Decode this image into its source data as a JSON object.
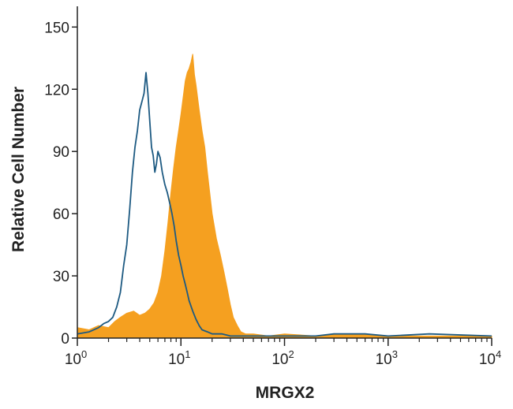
{
  "chart_data": {
    "type": "area",
    "xlabel": "MRGX2",
    "ylabel": "Relative Cell Number",
    "x_scale": "log",
    "xlim": [
      1,
      10000
    ],
    "ylim": [
      0,
      160
    ],
    "x_ticks": [
      {
        "value": 1,
        "base": "10",
        "exp": "0"
      },
      {
        "value": 10,
        "base": "10",
        "exp": "1"
      },
      {
        "value": 100,
        "base": "10",
        "exp": "2"
      },
      {
        "value": 1000,
        "base": "10",
        "exp": "3"
      },
      {
        "value": 10000,
        "base": "10",
        "exp": "4"
      }
    ],
    "y_ticks": [
      {
        "value": 0,
        "label": "0"
      },
      {
        "value": 30,
        "label": "30"
      },
      {
        "value": 60,
        "label": "60"
      },
      {
        "value": 90,
        "label": "90"
      },
      {
        "value": 120,
        "label": "120"
      },
      {
        "value": 150,
        "label": "150"
      }
    ],
    "grid": false,
    "series": [
      {
        "style": "filled",
        "color": "#f5a020",
        "x": [
          1.0,
          1.3,
          1.6,
          2.0,
          2.3,
          2.6,
          3.0,
          3.5,
          4.0,
          4.5,
          5.0,
          5.5,
          6.0,
          6.5,
          7.0,
          7.5,
          8.0,
          8.5,
          9.0,
          9.5,
          10.0,
          10.5,
          11.0,
          11.5,
          12.0,
          12.5,
          13.0,
          13.5,
          14.0,
          14.5,
          15.0,
          16.0,
          17.0,
          18.0,
          19.0,
          20.0,
          22.0,
          24.0,
          26.0,
          28.0,
          30.0,
          32.0,
          35.0,
          38.0,
          42.0,
          50.0,
          70.0,
          100.0,
          200.0,
          400.0,
          1000.0,
          3000.0,
          10000.0
        ],
        "y": [
          5,
          4,
          6,
          5,
          8,
          10,
          12,
          13,
          11,
          12,
          14,
          17,
          22,
          30,
          42,
          56,
          70,
          82,
          92,
          100,
          108,
          116,
          124,
          128,
          130,
          133,
          137,
          127,
          122,
          116,
          110,
          100,
          92,
          80,
          70,
          60,
          48,
          40,
          32,
          24,
          16,
          10,
          6,
          3,
          2,
          2,
          1,
          2,
          1,
          2,
          1,
          1,
          1
        ]
      },
      {
        "style": "outline",
        "color": "#1d5a82",
        "x": [
          1.0,
          1.3,
          1.6,
          1.8,
          2.0,
          2.2,
          2.4,
          2.6,
          2.8,
          3.0,
          3.2,
          3.4,
          3.6,
          3.8,
          4.0,
          4.2,
          4.4,
          4.6,
          4.8,
          5.0,
          5.2,
          5.4,
          5.6,
          5.8,
          6.0,
          6.3,
          6.6,
          7.0,
          7.4,
          7.8,
          8.2,
          8.6,
          9.0,
          9.5,
          10.0,
          10.5,
          11.0,
          11.5,
          12.0,
          13.0,
          14.0,
          15.0,
          16.0,
          18.0,
          20.0,
          25.0,
          30.0,
          50.0,
          100.0,
          200.0,
          300.0,
          600.0,
          1000.0,
          2500.0,
          10000.0
        ],
        "y": [
          2,
          3,
          5,
          7,
          8,
          10,
          15,
          22,
          35,
          45,
          62,
          80,
          92,
          100,
          110,
          114,
          118,
          128,
          118,
          105,
          92,
          88,
          80,
          84,
          90,
          87,
          80,
          74,
          70,
          65,
          60,
          54,
          47,
          40,
          35,
          30,
          26,
          22,
          18,
          13,
          9,
          6,
          4,
          3,
          2,
          2,
          1,
          1,
          1,
          1,
          2,
          2,
          1,
          2,
          1
        ]
      }
    ]
  }
}
